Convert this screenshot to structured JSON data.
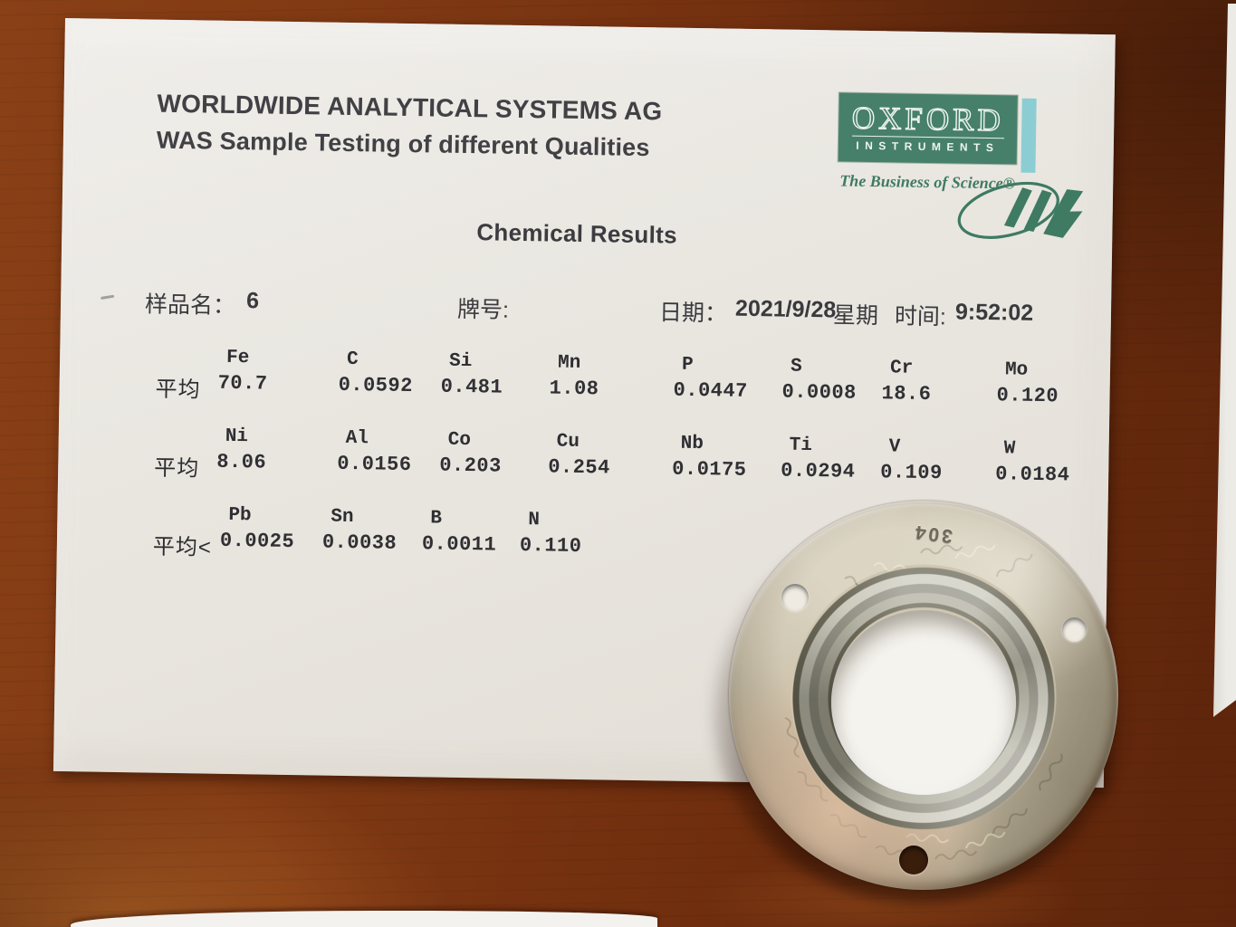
{
  "report": {
    "company_line1": "WORLDWIDE ANALYTICAL SYSTEMS AG",
    "company_line2": "WAS Sample Testing of different Qualities",
    "logo": {
      "brand": "OXFORD",
      "brand_sub": "INSTRUMENTS",
      "tagline": "The Business of Science®",
      "brand_green": "#47806a",
      "accent_cyan": "#8ccdd3"
    },
    "title": "Chemical Results",
    "info": {
      "sample_label": "样品名：",
      "sample_value": "6",
      "grade_label": "牌号:",
      "date_label": "日期：",
      "date_value": "2021/9/28",
      "weekday_label": "星期",
      "time_label": "时间:",
      "time_value": "9:52:02"
    },
    "results": {
      "groups": [
        {
          "label": "平均",
          "elements": [
            "Fe",
            "C",
            "Si",
            "Mn",
            "P",
            "S",
            "Cr",
            "Mo"
          ],
          "values": [
            "70.7",
            "0.0592",
            "0.481",
            "1.08",
            "0.0447",
            "0.0008",
            "18.6",
            "0.120"
          ]
        },
        {
          "label": "平均",
          "elements": [
            "Ni",
            "Al",
            "Co",
            "Cu",
            "Nb",
            "Ti",
            "V",
            "W"
          ],
          "values": [
            "8.06",
            "0.0156",
            "0.203",
            "0.254",
            "0.0175",
            "0.0294",
            "0.109",
            "0.0184"
          ]
        },
        {
          "label": "平均<",
          "elements": [
            "Pb",
            "Sn",
            "B",
            "N"
          ],
          "values": [
            "0.0025",
            "0.0038",
            "0.0011",
            "0.110"
          ]
        }
      ]
    }
  },
  "ring": {
    "stamp": "304"
  }
}
